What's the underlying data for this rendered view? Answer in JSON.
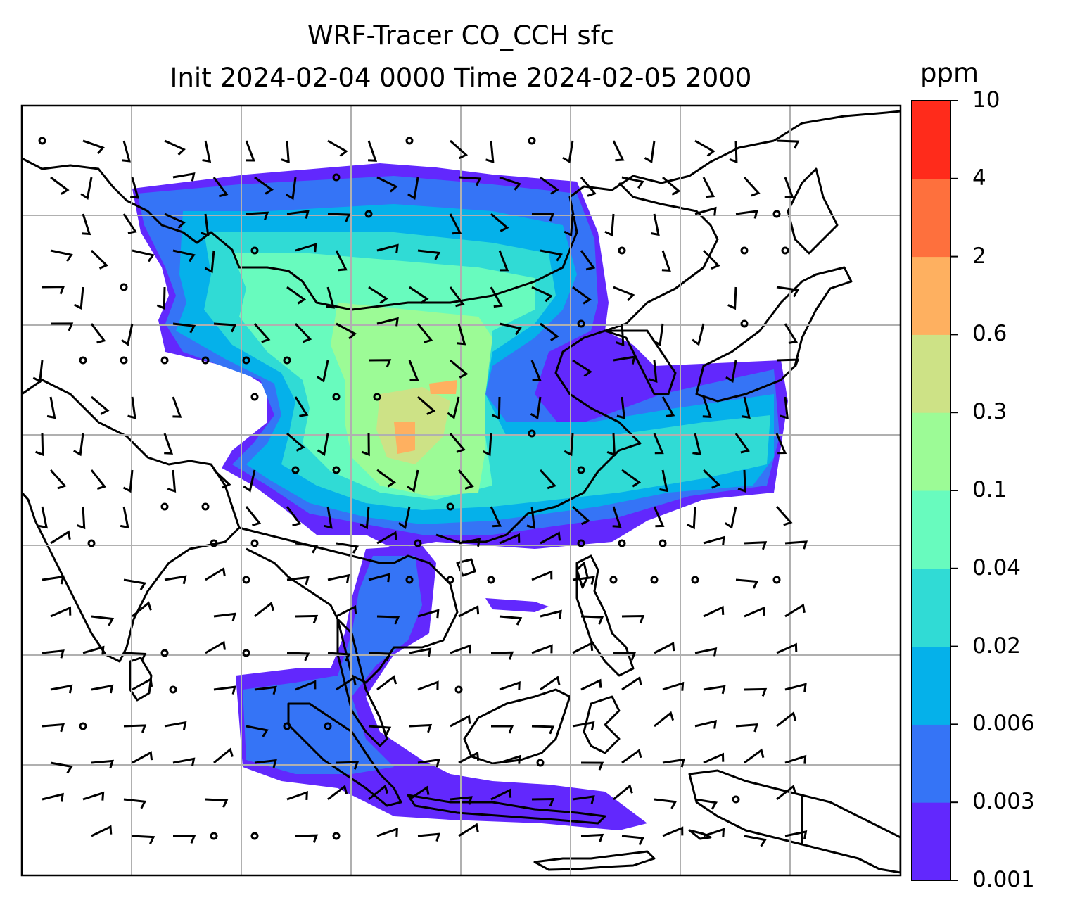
{
  "title_line1": "WRF-Tracer CO_CCH sfc",
  "title_line2": "Init 2024-02-04 0000 Time 2024-02-05 2000",
  "colorbar": {
    "unit": "ppm",
    "levels": [
      "0.001",
      "0.003",
      "0.006",
      "0.02",
      "0.04",
      "0.1",
      "0.3",
      "0.6",
      "2",
      "4",
      "10"
    ],
    "colors": [
      "#6228fd",
      "#3574f6",
      "#05b1ea",
      "#30dbd5",
      "#68fbbe",
      "#9cfb96",
      "#cde286",
      "#feb060",
      "#fe703d",
      "#ff2b1b"
    ]
  },
  "map": {
    "gridlines": true,
    "coastline_color": "#000000",
    "grid_color": "#b0b0b0"
  }
}
